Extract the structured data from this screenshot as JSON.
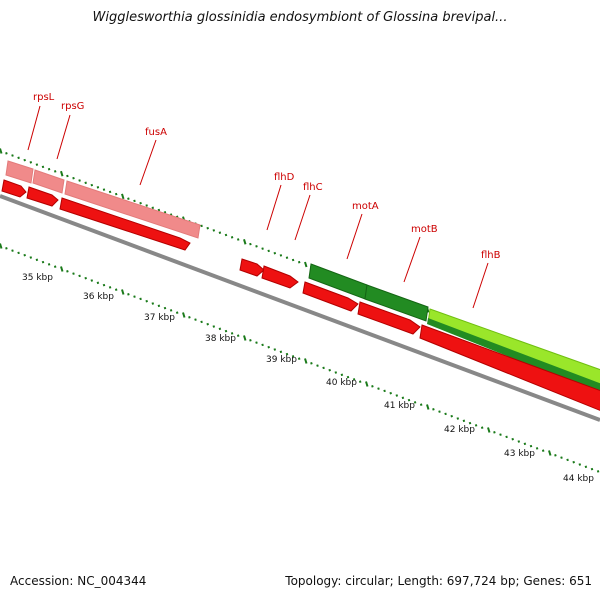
{
  "title": "Wigglesworthia glossinidia endosymbiont of Glossina brevipal...",
  "footer": {
    "accession": "Accession: NC_004344",
    "summary": "Topology: circular; Length: 697,724 bp; Genes: 651"
  },
  "genes": [
    {
      "name": "rpsL",
      "strand": "reverse",
      "track_color": "#f08a8a"
    },
    {
      "name": "rpsG",
      "strand": "reverse",
      "track_color": "#f08a8a"
    },
    {
      "name": "fusA",
      "strand": "reverse",
      "track_color": "#f08a8a"
    },
    {
      "name": "flhD",
      "strand": "forward",
      "track_color": "#ee1111"
    },
    {
      "name": "flhC",
      "strand": "forward",
      "track_color": "#ee1111"
    },
    {
      "name": "motA",
      "strand": "forward",
      "track_color": "#228b22"
    },
    {
      "name": "motB",
      "strand": "forward",
      "track_color": "#228b22"
    },
    {
      "name": "flhB",
      "strand": "forward",
      "track_color": "#9ae62a"
    }
  ],
  "kbp_labels": [
    "35 kbp",
    "36 kbp",
    "37 kbp",
    "38 kbp",
    "39 kbp",
    "40 kbp",
    "41 kbp",
    "42 kbp",
    "43 kbp",
    "44 kbp"
  ],
  "colors": {
    "cds": "#ee1111",
    "cds_dark": "#b30000",
    "pink": "#f08a8a",
    "green": "#228b22",
    "lightgreen": "#9ae62a",
    "backbone": "#888888",
    "tick": "#1a7a1a",
    "label": "#cc0000"
  }
}
